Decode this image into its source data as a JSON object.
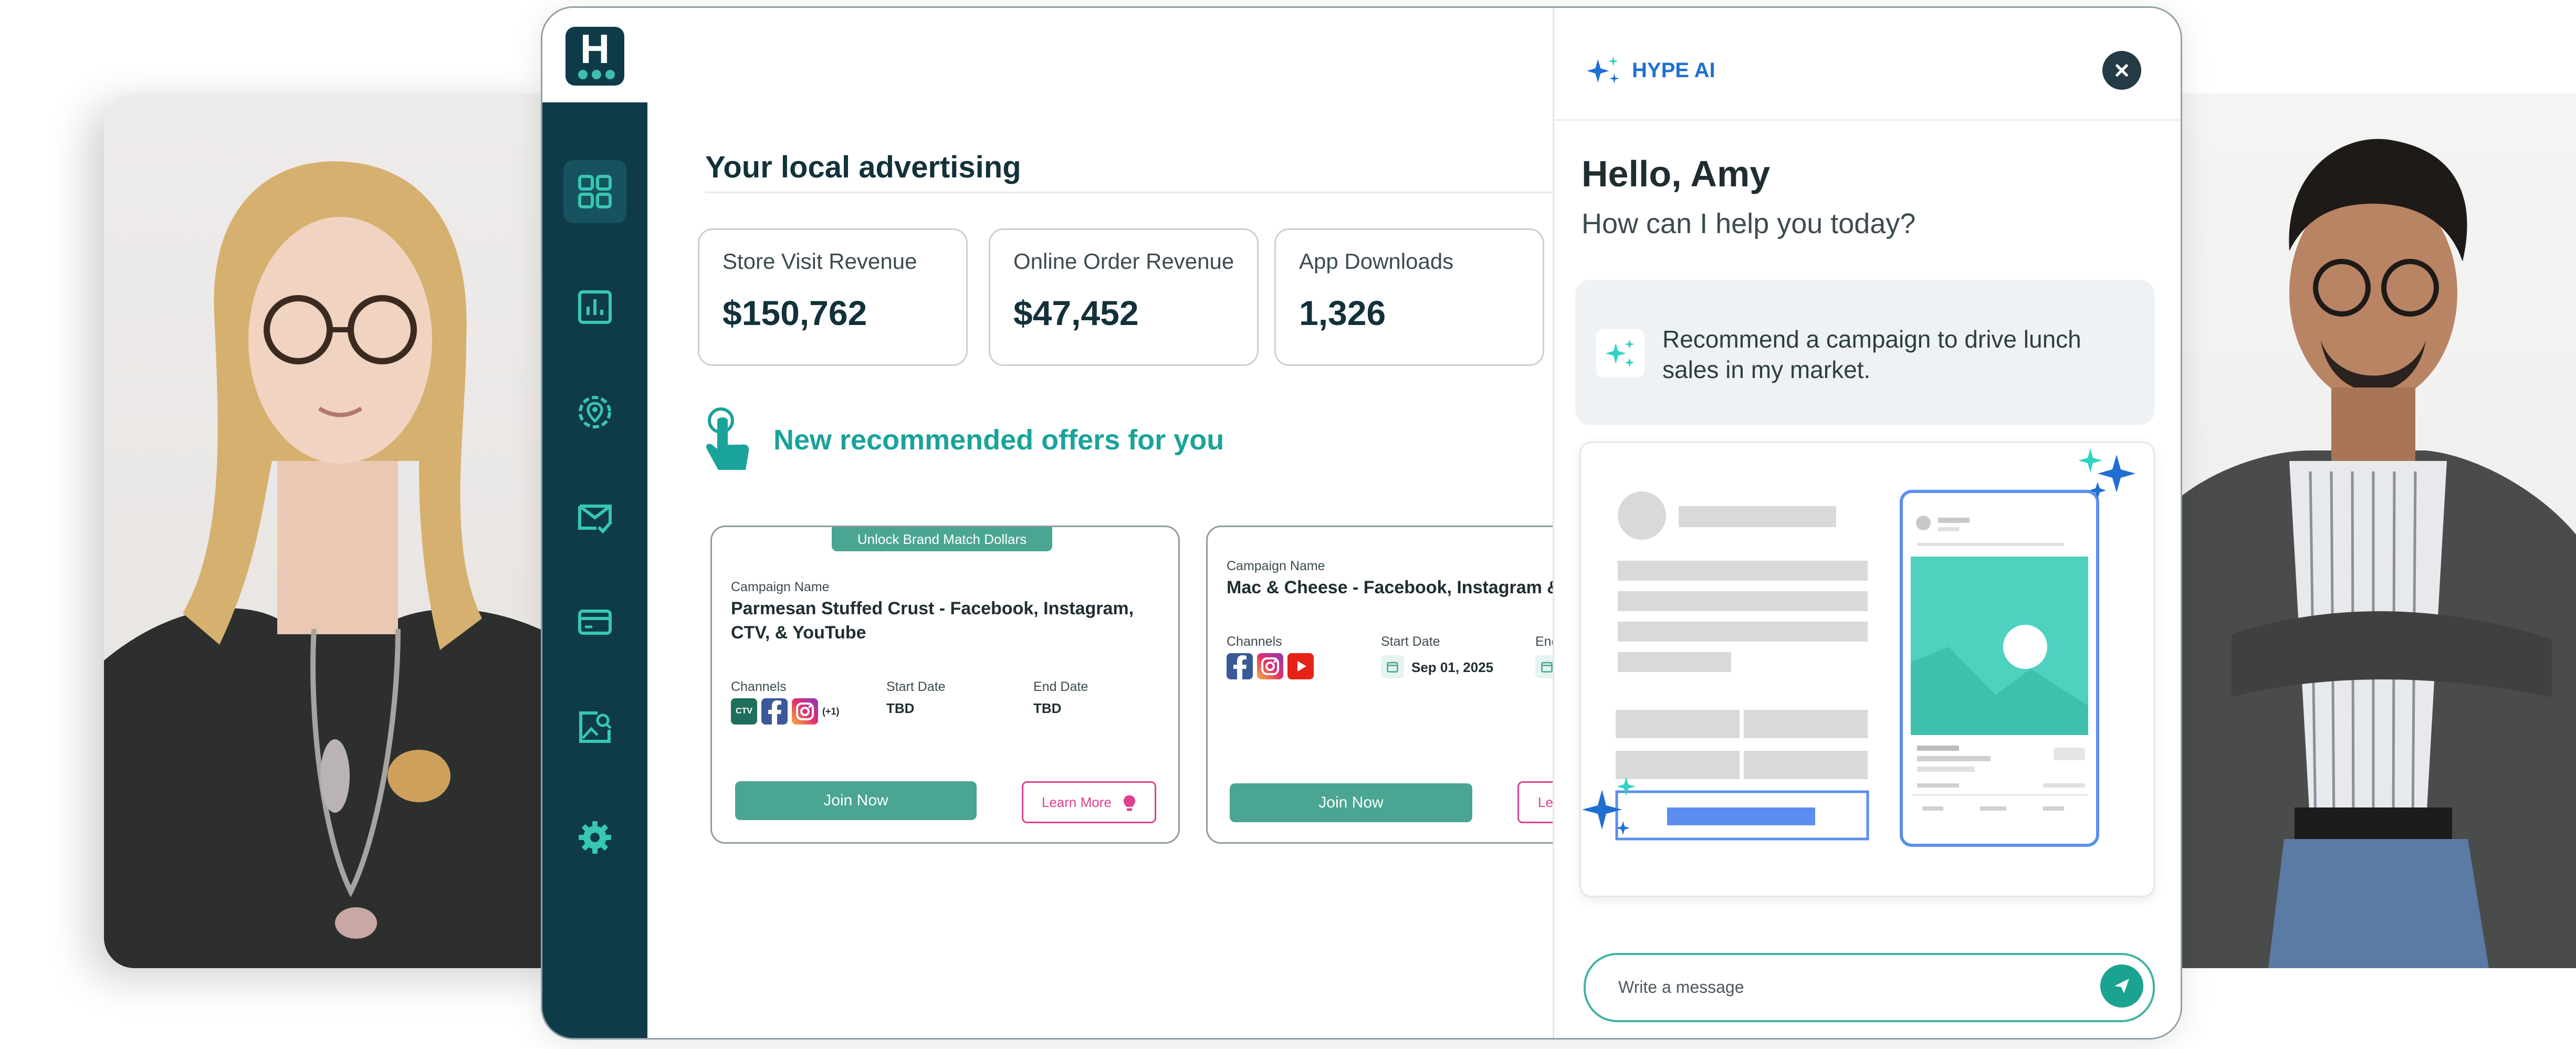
{
  "colors": {
    "sidebar": "#0f3b49",
    "accent_teal": "#1aa39a",
    "join_button": "#4aa592",
    "learn_more": "#e0418f",
    "ai_brand": "#1f6fd1"
  },
  "app": {
    "logo_letter": "H"
  },
  "sidebar": {
    "items": [
      {
        "icon": "dashboard-grid-icon",
        "active": true
      },
      {
        "icon": "bar-chart-icon"
      },
      {
        "icon": "location-pin-icon"
      },
      {
        "icon": "mail-check-icon"
      },
      {
        "icon": "credit-card-icon"
      },
      {
        "icon": "image-search-icon"
      },
      {
        "icon": "gear-icon"
      }
    ]
  },
  "main": {
    "title": "Your local advertising",
    "stats": [
      {
        "label": "Store Visit Revenue",
        "value": "$150,762"
      },
      {
        "label": "Online Order Revenue",
        "value": "$47,452"
      },
      {
        "label": "App Downloads",
        "value": "1,326"
      }
    ],
    "recommended_title": "New recommended offers for you",
    "offers": [
      {
        "tag": "Unlock Brand Match Dollars",
        "name_label": "Campaign Name",
        "name": "Parmesan Stuffed Crust - Facebook, Instagram, CTV, & YouTube",
        "channels_label": "Channels",
        "channels": [
          "ctv",
          "facebook",
          "instagram"
        ],
        "channels_more": "(+1)",
        "start_label": "Start Date",
        "start": "TBD",
        "end_label": "End Date",
        "end": "TBD",
        "join_label": "Join Now",
        "learn_label": "Learn More"
      },
      {
        "name_label": "Campaign Name",
        "name": "Mac & Cheese - Facebook, Instagram & Y",
        "channels_label": "Channels",
        "channels": [
          "facebook",
          "instagram",
          "youtube"
        ],
        "start_label": "Start Date",
        "start": "Sep 01, 2025",
        "end_label": "End",
        "join_label": "Join Now",
        "learn_label": "Le"
      }
    ]
  },
  "ai_panel": {
    "brand": "HYPE AI",
    "greeting": "Hello, Amy",
    "subtitle": "How can I help you today?",
    "prompt": "Recommend a campaign to drive lunch sales in my market.",
    "message_placeholder": "Write a message"
  }
}
